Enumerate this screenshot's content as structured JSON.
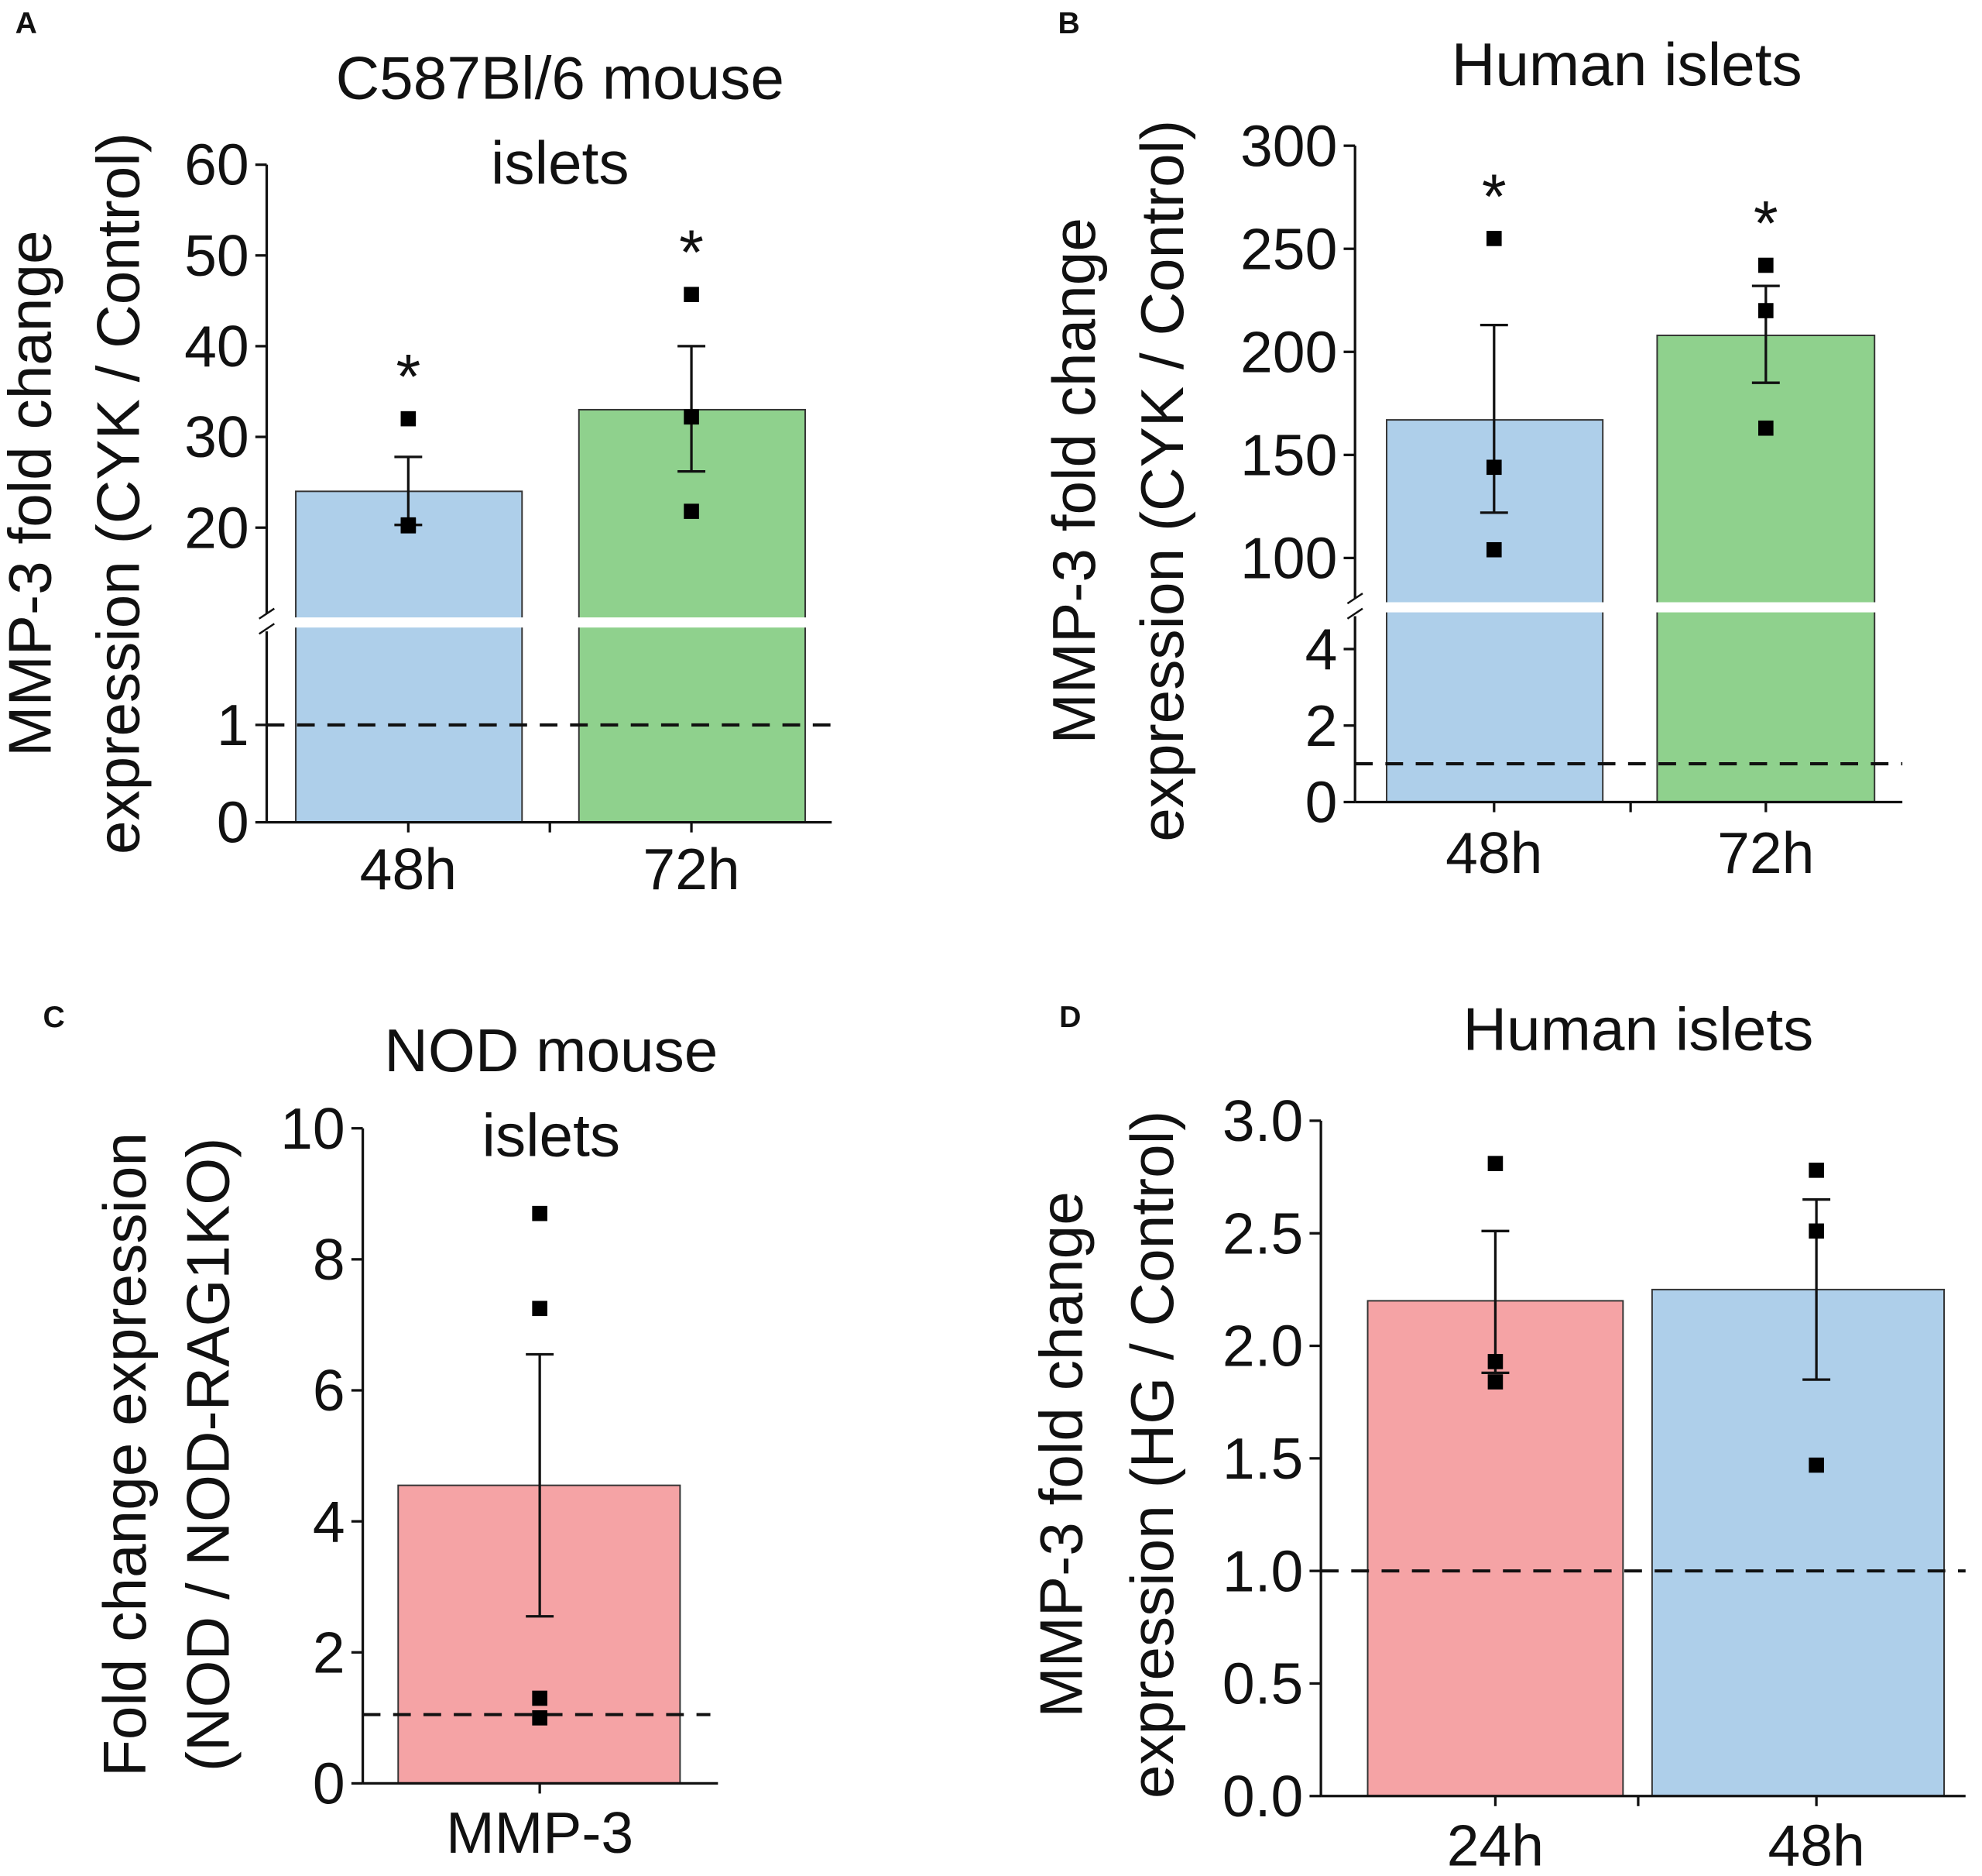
{
  "chart_data": [
    {
      "panel": "A",
      "type": "bar",
      "title": [
        "C587Bl/6 mouse",
        "islets"
      ],
      "ylabel": [
        "MMP-3 fold change",
        "expression (CYK / Control)"
      ],
      "categories": [
        "48h",
        "72h"
      ],
      "values": [
        24,
        33
      ],
      "error_low": [
        20.3,
        26.2
      ],
      "error_high": [
        27.8,
        40
      ],
      "points": [
        [
          32,
          20.3,
          20.2
        ],
        [
          45.7,
          32.2,
          21.8
        ]
      ],
      "significance": [
        "*",
        "*"
      ],
      "colors": [
        "#aecfea",
        "#8fd18d"
      ],
      "reference_line": 1,
      "axis_break": {
        "lower": [
          0,
          2
        ],
        "upper": [
          10.5,
          60
        ]
      },
      "yticks": [
        0,
        1,
        20,
        30,
        40,
        50,
        60
      ],
      "ytick_labels": [
        "0",
        "1",
        "20",
        "30",
        "40",
        "50",
        "60"
      ]
    },
    {
      "panel": "B",
      "type": "bar",
      "title": [
        "Human islets"
      ],
      "ylabel": [
        "MMP-3 fold change",
        "expression (CYK / Control)"
      ],
      "categories": [
        "48h",
        "72h"
      ],
      "values": [
        167,
        208
      ],
      "error_low": [
        122,
        185
      ],
      "error_high": [
        213,
        232
      ],
      "points": [
        [
          255,
          144,
          104
        ],
        [
          242,
          220,
          163
        ]
      ],
      "significance": [
        "*",
        "*"
      ],
      "colors": [
        "#aecfea",
        "#8fd18d"
      ],
      "reference_line": 1,
      "axis_break": {
        "lower": [
          0,
          4.8
        ],
        "upper": [
          81,
          300
        ]
      },
      "yticks": [
        0,
        2,
        4,
        100,
        150,
        200,
        250,
        300
      ],
      "ytick_labels": [
        "0",
        "2",
        "4",
        "100",
        "150",
        "200",
        "250",
        "300"
      ]
    },
    {
      "panel": "C",
      "type": "bar",
      "title": [
        "NOD mouse",
        "islets"
      ],
      "ylabel": [
        "Fold change expression",
        "(NOD / NOD-RAG1KO)"
      ],
      "categories": [
        "MMP-3"
      ],
      "values": [
        4.55
      ],
      "error_low": [
        2.55
      ],
      "error_high": [
        6.55
      ],
      "points": [
        [
          8.7,
          7.25,
          1.3,
          1.0
        ]
      ],
      "significance": [
        ""
      ],
      "colors": [
        "#f5a3a5"
      ],
      "reference_line": 1.05,
      "ylim": [
        0,
        10
      ],
      "yticks": [
        0,
        2,
        4,
        6,
        8,
        10
      ],
      "ytick_labels": [
        "0",
        "2",
        "4",
        "6",
        "8",
        "10"
      ]
    },
    {
      "panel": "D",
      "type": "bar",
      "title": [
        "Human islets"
      ],
      "ylabel": [
        "MMP-3 fold change",
        "expression (HG / Control)"
      ],
      "categories": [
        "24h",
        "48h"
      ],
      "values": [
        2.2,
        2.25
      ],
      "error_low": [
        1.88,
        1.85
      ],
      "error_high": [
        2.51,
        2.65
      ],
      "points": [
        [
          2.81,
          1.93,
          1.84
        ],
        [
          2.78,
          2.51,
          1.47
        ]
      ],
      "significance": [
        "",
        ""
      ],
      "colors": [
        "#f5a3a5",
        "#aecfea"
      ],
      "reference_line": 1.0,
      "ylim": [
        0,
        3
      ],
      "yticks": [
        0,
        0.5,
        1,
        1.5,
        2,
        2.5,
        3
      ],
      "ytick_labels": [
        "0.0",
        "0.5",
        "1.0",
        "1.5",
        "2.0",
        "2.5",
        "3.0"
      ]
    }
  ]
}
